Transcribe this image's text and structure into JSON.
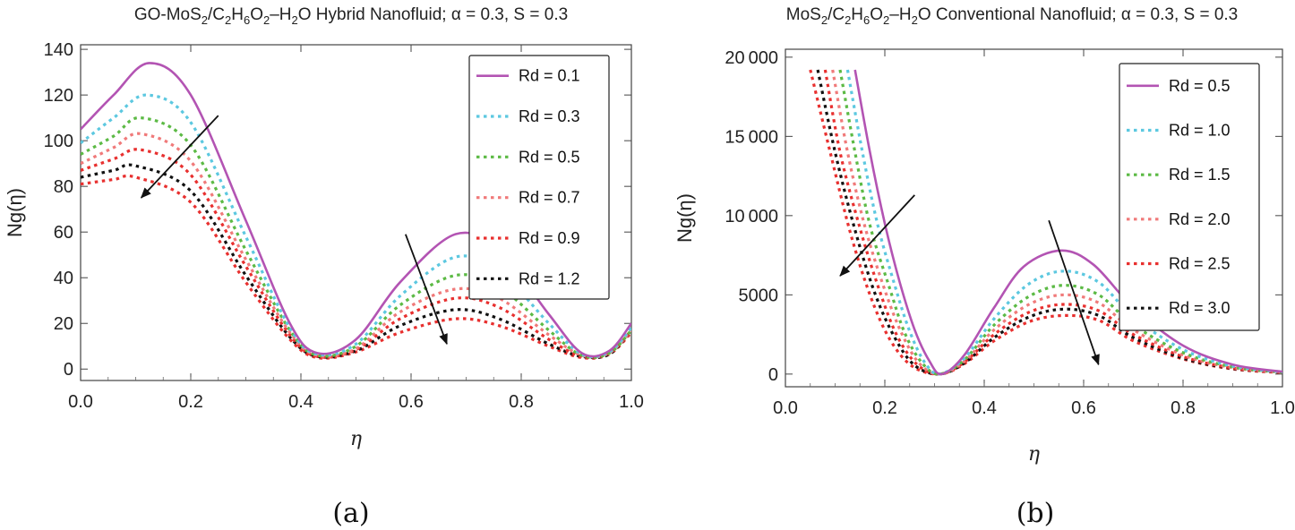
{
  "chart_data": [
    {
      "type": "line",
      "panel": "a",
      "title_parts": [
        "GO-MoS",
        "2",
        "/C",
        "2",
        "H",
        "6",
        "O",
        "2",
        "–H",
        "2",
        "O Hybrid Nanofluid; α = 0.3, S = 0.3"
      ],
      "caption": "(a)",
      "xlabel": "η",
      "ylabel": "Ng(η)",
      "xlim": [
        0,
        1
      ],
      "ylim": [
        -5,
        142
      ],
      "xticks": [
        0,
        0.2,
        0.4,
        0.6,
        0.8,
        1.0
      ],
      "xtick_labels": [
        "0.0",
        "0.2",
        "0.4",
        "0.6",
        "0.8",
        "1.0"
      ],
      "yticks": [
        0,
        20,
        40,
        60,
        80,
        100,
        120,
        140
      ],
      "ytick_labels": [
        "0",
        "20",
        "40",
        "60",
        "80",
        "100",
        "120",
        "140"
      ],
      "legend_position": "top-right",
      "series": [
        {
          "name": "Rd = 0.1",
          "color": "#b354b3",
          "dashed": false,
          "x": [
            0.0,
            0.06,
            0.125,
            0.2,
            0.3,
            0.38,
            0.43,
            0.5,
            0.58,
            0.68,
            0.76,
            0.85,
            0.91,
            0.96,
            1.0
          ],
          "y": [
            105,
            120,
            134,
            120,
            65,
            20,
            7,
            13,
            38,
            59,
            52,
            24,
            7,
            8,
            20
          ]
        },
        {
          "name": "Rd = 0.3",
          "color": "#5cc8e0",
          "dashed": true,
          "x": [
            0.0,
            0.06,
            0.12,
            0.2,
            0.3,
            0.38,
            0.43,
            0.5,
            0.58,
            0.68,
            0.76,
            0.85,
            0.91,
            0.96,
            1.0
          ],
          "y": [
            99,
            110,
            120,
            108,
            58,
            18,
            6.5,
            11,
            32,
            49,
            43,
            20,
            6.5,
            7.5,
            18
          ]
        },
        {
          "name": "Rd = 0.5",
          "color": "#5cba45",
          "dashed": true,
          "x": [
            0.0,
            0.06,
            0.11,
            0.2,
            0.3,
            0.38,
            0.43,
            0.5,
            0.58,
            0.68,
            0.76,
            0.85,
            0.91,
            0.96,
            1.0
          ],
          "y": [
            94,
            102,
            110,
            98,
            52,
            17,
            6,
            10,
            28,
            41,
            36,
            17,
            6,
            7,
            17
          ]
        },
        {
          "name": "Rd = 0.7",
          "color": "#f07a7a",
          "dashed": true,
          "x": [
            0.0,
            0.06,
            0.11,
            0.2,
            0.3,
            0.38,
            0.43,
            0.5,
            0.58,
            0.68,
            0.76,
            0.85,
            0.91,
            0.96,
            1.0
          ],
          "y": [
            90,
            97,
            103,
            91,
            48,
            16,
            6,
            9,
            25,
            35,
            31,
            15,
            6,
            7,
            17
          ]
        },
        {
          "name": "Rd = 0.9",
          "color": "#e8302f",
          "dashed": true,
          "x": [
            0.0,
            0.06,
            0.11,
            0.2,
            0.3,
            0.38,
            0.43,
            0.5,
            0.58,
            0.68,
            0.76,
            0.85,
            0.91,
            0.96,
            1.0
          ],
          "y": [
            87,
            92,
            96,
            85,
            45,
            15,
            5.5,
            8.5,
            22,
            31,
            27,
            13,
            5.5,
            7,
            17
          ]
        },
        {
          "name": "Rd = 1.2",
          "color": "#111111",
          "dashed": true,
          "x": [
            0.0,
            0.06,
            0.1,
            0.2,
            0.3,
            0.38,
            0.43,
            0.5,
            0.58,
            0.68,
            0.76,
            0.85,
            0.91,
            0.96,
            1.0
          ],
          "y": [
            84,
            87,
            89,
            78,
            41,
            14,
            5.5,
            8,
            19,
            26,
            22,
            11,
            5.5,
            6.5,
            17
          ]
        },
        {
          "name": "",
          "color": "#e8302f",
          "dashed": true,
          "legend": false,
          "x": [
            0.0,
            0.06,
            0.1,
            0.2,
            0.3,
            0.38,
            0.43,
            0.5,
            0.58,
            0.68,
            0.76,
            0.85,
            0.91,
            0.96,
            1.0
          ],
          "y": [
            81,
            83,
            84,
            73,
            38,
            13,
            5,
            7.5,
            16,
            22,
            19,
            10,
            5,
            6.5,
            16
          ]
        }
      ],
      "arrows": [
        {
          "from": [
            0.25,
            111
          ],
          "to": [
            0.11,
            75
          ]
        },
        {
          "from": [
            0.59,
            59
          ],
          "to": [
            0.665,
            11
          ]
        }
      ]
    },
    {
      "type": "line",
      "panel": "b",
      "title_parts": [
        "MoS",
        "2",
        "/C",
        "2",
        "H",
        "6",
        "O",
        "2",
        "–H",
        "2",
        "O Conventional Nanofluid; α = 0.3, S = 0.3"
      ],
      "caption": "(b)",
      "xlabel": "η",
      "ylabel": "Ng(η)",
      "xlim": [
        0,
        1
      ],
      "ylim": [
        -800,
        20500
      ],
      "xticks": [
        0,
        0.2,
        0.4,
        0.6,
        0.8,
        1.0
      ],
      "xtick_labels": [
        "0.0",
        "0.2",
        "0.4",
        "0.6",
        "0.8",
        "1.0"
      ],
      "yticks": [
        0,
        5000,
        10000,
        15000,
        20000
      ],
      "ytick_labels": [
        "0",
        "5000",
        "10 000",
        "15 000",
        "20 000"
      ],
      "legend_position": "top-right",
      "series": [
        {
          "name": "Rd = 0.5",
          "color": "#b354b3",
          "dashed": false,
          "x": [
            0.14,
            0.17,
            0.2,
            0.23,
            0.26,
            0.29,
            0.315,
            0.36,
            0.42,
            0.48,
            0.555,
            0.62,
            0.7,
            0.8,
            0.9,
            1.0
          ],
          "y": [
            19200,
            14000,
            9500,
            5800,
            2800,
            800,
            0,
            1200,
            4200,
            6800,
            7800,
            6900,
            4200,
            1800,
            600,
            150
          ]
        },
        {
          "name": "Rd = 1.0",
          "color": "#5cc8e0",
          "dashed": true,
          "x": [
            0.125,
            0.155,
            0.185,
            0.22,
            0.25,
            0.28,
            0.31,
            0.36,
            0.42,
            0.49,
            0.56,
            0.63,
            0.7,
            0.8,
            0.9,
            1.0
          ],
          "y": [
            19200,
            14000,
            9500,
            5600,
            2700,
            750,
            0,
            1000,
            3500,
            5700,
            6500,
            5800,
            3600,
            1550,
            500,
            130
          ]
        },
        {
          "name": "Rd = 1.5",
          "color": "#5cba45",
          "dashed": true,
          "x": [
            0.11,
            0.14,
            0.17,
            0.21,
            0.24,
            0.275,
            0.31,
            0.36,
            0.42,
            0.49,
            0.56,
            0.63,
            0.7,
            0.8,
            0.9,
            1.0
          ],
          "y": [
            19200,
            14000,
            9400,
            5400,
            2600,
            700,
            0,
            900,
            3100,
            4900,
            5600,
            5000,
            3100,
            1350,
            450,
            120
          ]
        },
        {
          "name": "Rd = 2.0",
          "color": "#f07a7a",
          "dashed": true,
          "x": [
            0.095,
            0.125,
            0.16,
            0.2,
            0.235,
            0.27,
            0.31,
            0.36,
            0.42,
            0.49,
            0.56,
            0.63,
            0.7,
            0.8,
            0.9,
            1.0
          ],
          "y": [
            19200,
            14000,
            9300,
            5300,
            2500,
            650,
            0,
            800,
            2800,
            4400,
            5000,
            4500,
            2800,
            1200,
            400,
            110
          ]
        },
        {
          "name": "Rd = 2.5",
          "color": "#e8302f",
          "dashed": true,
          "x": [
            0.08,
            0.11,
            0.15,
            0.19,
            0.225,
            0.265,
            0.31,
            0.36,
            0.42,
            0.49,
            0.56,
            0.63,
            0.7,
            0.8,
            0.9,
            1.0
          ],
          "y": [
            19200,
            14000,
            9200,
            5200,
            2400,
            600,
            0,
            750,
            2500,
            3900,
            4400,
            4000,
            2500,
            1100,
            380,
            100
          ]
        },
        {
          "name": "Rd = 3.0",
          "color": "#111111",
          "dashed": true,
          "x": [
            0.065,
            0.1,
            0.14,
            0.18,
            0.22,
            0.26,
            0.31,
            0.36,
            0.42,
            0.49,
            0.56,
            0.63,
            0.7,
            0.8,
            0.9,
            1.0
          ],
          "y": [
            19200,
            14000,
            9100,
            5100,
            2300,
            550,
            0,
            700,
            2300,
            3600,
            4100,
            3700,
            2300,
            1000,
            350,
            100
          ]
        },
        {
          "name": "",
          "color": "#e8302f",
          "dashed": true,
          "legend": false,
          "x": [
            0.05,
            0.09,
            0.13,
            0.17,
            0.21,
            0.255,
            0.31,
            0.36,
            0.42,
            0.49,
            0.56,
            0.63,
            0.7,
            0.8,
            0.9,
            1.0
          ],
          "y": [
            19200,
            14000,
            9000,
            5000,
            2200,
            500,
            0,
            650,
            2100,
            3300,
            3700,
            3400,
            2100,
            950,
            320,
            90
          ]
        }
      ],
      "arrows": [
        {
          "from": [
            0.26,
            11300
          ],
          "to": [
            0.11,
            6200
          ]
        },
        {
          "from": [
            0.53,
            9700
          ],
          "to": [
            0.63,
            600
          ]
        }
      ]
    }
  ]
}
